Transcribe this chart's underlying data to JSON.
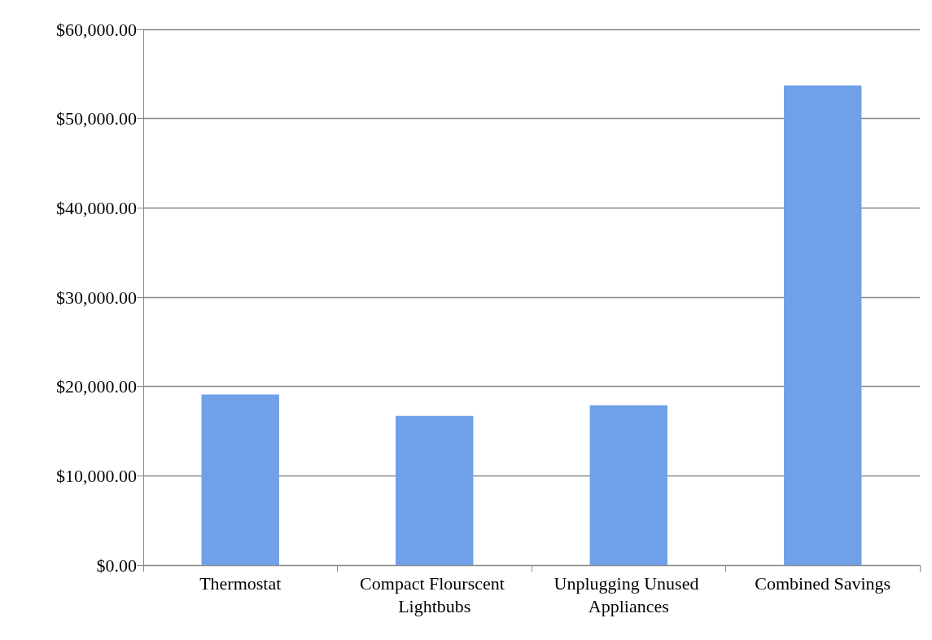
{
  "chart_data": {
    "type": "bar",
    "categories": [
      "Thermostat",
      "Compact Flourscent Lightbubs",
      "Unplugging Unused Appliances",
      "Combined Savings"
    ],
    "values": [
      19100,
      16700,
      17900,
      53700
    ],
    "color": "#6fa0e8",
    "ylim": [
      0,
      60000
    ],
    "yticks": [
      {
        "value": 0,
        "label": "$0.00"
      },
      {
        "value": 10000,
        "label": "$10,000.00"
      },
      {
        "value": 20000,
        "label": "$20,000.00"
      },
      {
        "value": 30000,
        "label": "$30,000.00"
      },
      {
        "value": 40000,
        "label": "$40,000.00"
      },
      {
        "value": 50000,
        "label": "$50,000.00"
      },
      {
        "value": 60000,
        "label": "$60,000.00"
      }
    ],
    "grid": "y"
  }
}
